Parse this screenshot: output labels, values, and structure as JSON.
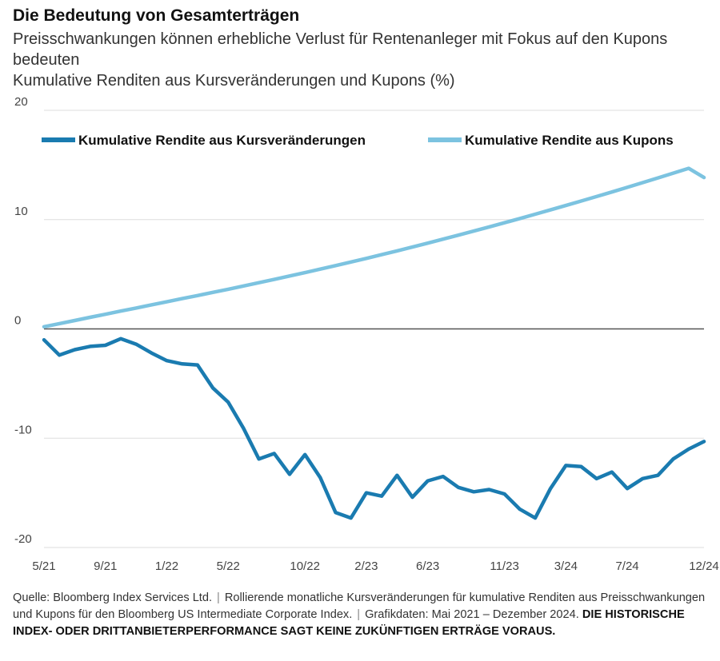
{
  "header": {
    "title": "Die Bedeutung von Gesamterträgen",
    "subtitle": "Preisschwankungen können erhebliche Verlust für Rentenanleger mit Fokus auf den Kupons bedeuten",
    "unit_label": "Kumulative Renditen aus Kursveränderungen und Kupons (%)"
  },
  "colors": {
    "price": "#1a7bb0",
    "coupon": "#7cc3e0",
    "zero_line": "#555555",
    "grid": "#dddddd"
  },
  "footer": {
    "source": "Quelle: Bloomberg Index Services Ltd.",
    "note": "Rollierende monatliche Kursveränderungen für kumulative Renditen aus Preisschwankungen und Kupons für den Bloomberg US Intermediate Corporate Index.",
    "dates": "Grafikdaten: Mai 2021 – Dezember 2024.",
    "disclaimer": "DIE HISTORISCHE INDEX- ODER DRITTANBIETERPERFORMANCE SAGT KEINE ZUKÜNFTIGEN ERTRÄGE VORAUS."
  },
  "chart_data": {
    "type": "line",
    "ylim": [
      -20,
      20
    ],
    "yticks": [
      20,
      10,
      0,
      -10,
      -20
    ],
    "x_tick_labels": [
      {
        "index": 0,
        "label": "5/21"
      },
      {
        "index": 4,
        "label": "9/21"
      },
      {
        "index": 8,
        "label": "1/22"
      },
      {
        "index": 12,
        "label": "5/22"
      },
      {
        "index": 17,
        "label": "10/22"
      },
      {
        "index": 21,
        "label": "2/23"
      },
      {
        "index": 25,
        "label": "6/23"
      },
      {
        "index": 30,
        "label": "11/23"
      },
      {
        "index": 34,
        "label": "3/24"
      },
      {
        "index": 38,
        "label": "7/24"
      },
      {
        "index": 43,
        "label": "12/24"
      }
    ],
    "series": [
      {
        "name": "Kumulative Rendite aus Kursveränderungen",
        "values": [
          -1.0,
          -2.4,
          -1.9,
          -1.6,
          -1.5,
          -0.9,
          -1.4,
          -2.2,
          -2.9,
          -3.2,
          -3.3,
          -5.4,
          -6.7,
          -9.1,
          -11.9,
          -11.4,
          -13.3,
          -11.5,
          -13.6,
          -16.8,
          -17.3,
          -15.0,
          -15.3,
          -13.4,
          -15.4,
          -13.9,
          -13.5,
          -14.5,
          -14.9,
          -14.7,
          -15.1,
          -16.5,
          -17.3,
          -14.6,
          -12.5,
          -12.6,
          -13.7,
          -13.1,
          -14.6,
          -13.7,
          -13.4,
          -11.9,
          -11.0,
          -10.3
        ]
      },
      {
        "name": "Kumulative Rendite aus Kupons",
        "values": [
          0.2,
          0.48,
          0.77,
          1.06,
          1.34,
          1.63,
          1.91,
          2.2,
          2.48,
          2.77,
          3.05,
          3.34,
          3.63,
          3.93,
          4.23,
          4.53,
          4.84,
          5.15,
          5.47,
          5.79,
          6.12,
          6.45,
          6.79,
          7.14,
          7.49,
          7.85,
          8.21,
          8.58,
          8.95,
          9.33,
          9.71,
          10.1,
          10.49,
          10.89,
          11.29,
          11.7,
          12.11,
          12.53,
          12.95,
          13.38,
          13.81,
          14.25,
          14.69,
          13.85
        ]
      }
    ]
  }
}
